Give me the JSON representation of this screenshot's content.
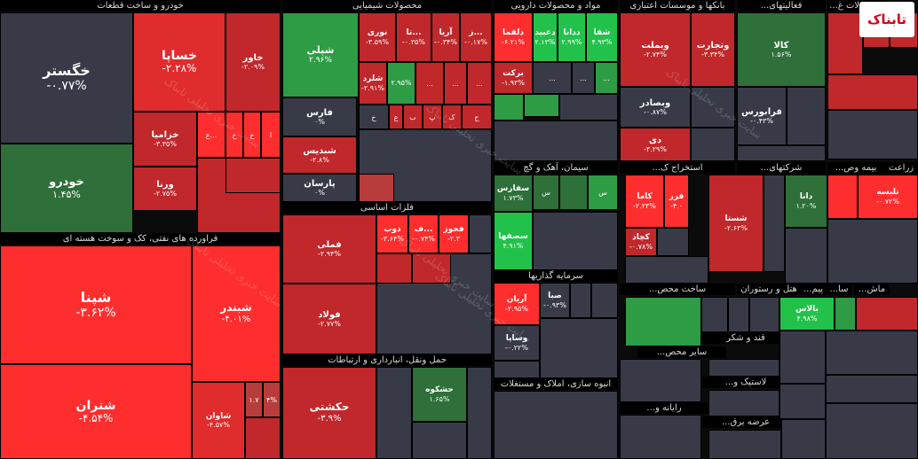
{
  "colors": {
    "dr": "#c0282b",
    "r": "#e02c2c",
    "br": "#ff2e2e",
    "sr": "#b93c3c",
    "n": "#383b47",
    "sg": "#2f6f3a",
    "g": "#2e9c45",
    "bg": "#22c24a",
    "gr": "#3c7c3c"
  },
  "watermark": "سایت خبری تحلیلی تابناک",
  "logo": "تابناک",
  "sectors": [
    "خودرو و ساخت قطعات",
    "محصولات شیمیایی",
    "مواد و محصولات دارویی",
    "بانکها و موسسات اعتباری",
    "فعالیتهای...",
    "محصولات غ...",
    "فراورده های نفتی، کک و سوخت هسته ای",
    "فلزات اساسی",
    "سیمان، آهک و گچ",
    "استخراج ک...",
    "شرکتهای...",
    "بیمه وص...",
    "زراعت",
    "سرمایه گذاریها",
    "ساخت محص...",
    "هتل و رستوران",
    "پیم...",
    "سا...",
    "ماش...",
    "حمل ونقل، انبارداری و ارتباطات",
    "انبوه سازی، املاک و مستغلات",
    "قند و شکر",
    "سایر محص...",
    "لاستیک و...",
    "رایانه و...",
    "عرضه برق..."
  ],
  "tiles": [
    {
      "n": "خگستر",
      "p": "-۰.۷۷%"
    },
    {
      "n": "خساپا",
      "p": "-۲.۲۸%"
    },
    {
      "n": "خاور",
      "p": "-۲.۰۹%"
    },
    {
      "n": "خزامیا",
      "p": "-۳.۳۵%"
    },
    {
      "n": "ورنا",
      "p": "-۲.۷۵%"
    },
    {
      "n": "خودرو",
      "p": "۱.۴۵%"
    },
    {
      "n": "شپلی",
      "p": "۲.۹۶%"
    },
    {
      "n": "نوری",
      "p": "-۳.۵۹%"
    },
    {
      "n": "تا...",
      "p": "-۰.۳۵%"
    },
    {
      "n": "آریا",
      "p": "-۰.۳۴%"
    },
    {
      "n": "ز...",
      "p": "-۰.۱۷%"
    },
    {
      "n": "شلرد",
      "p": "-۲.۹۱%"
    },
    {
      "n": "",
      "p": "۲.۹۵%"
    },
    {
      "n": "فارس",
      "p": "۰%"
    },
    {
      "n": "شبدیس",
      "p": "-۲.۸%"
    },
    {
      "n": "پارسان",
      "p": "۰%"
    },
    {
      "n": "دلقما",
      "p": "-۶.۲۱%"
    },
    {
      "n": "دعبید",
      "p": "۲.۱۳%"
    },
    {
      "n": "ددانا",
      "p": "۲.۹۹%"
    },
    {
      "n": "شفا",
      "p": "۴.۹۳%"
    },
    {
      "n": "برکت",
      "p": "-۱.۹۳%"
    },
    {
      "n": "وبملت",
      "p": "-۲.۷۴%"
    },
    {
      "n": "وتجارت",
      "p": "-۳.۳۴%"
    },
    {
      "n": "وبصادر",
      "p": "-۰.۸۷%"
    },
    {
      "n": "دی",
      "p": "-۳.۲۹%"
    },
    {
      "n": "کالا",
      "p": "۱.۵۶%"
    },
    {
      "n": "فرابورس",
      "p": "-۰.۴۳%"
    },
    {
      "n": "شپنا",
      "p": "-۳.۶۲%"
    },
    {
      "n": "شبندر",
      "p": "-۴.۰۱%"
    },
    {
      "n": "شتران",
      "p": "-۴.۵۴%"
    },
    {
      "n": "شاوان",
      "p": "-۴.۵۷%"
    },
    {
      "n": "فملی",
      "p": "-۲.۹۴%"
    },
    {
      "n": "ذوب",
      "p": "-۳.۶۴%"
    },
    {
      "n": "ف...",
      "p": "-۰.۷۴%"
    },
    {
      "n": "فخوز",
      "p": "-۲.۳"
    },
    {
      "n": "فولاد",
      "p": "-۲.۷۷%"
    },
    {
      "n": "سفارس",
      "p": "۱.۷۳%"
    },
    {
      "n": "سصفها",
      "p": "۴.۹۱%"
    },
    {
      "n": "کاما",
      "p": "-۲.۲۳%"
    },
    {
      "n": "فزر",
      "p": "-۴.۰"
    },
    {
      "n": "کچاد",
      "p": "-۰.۷۸%"
    },
    {
      "n": "شستا",
      "p": "-۲.۶۳%"
    },
    {
      "n": "دانا",
      "p": "۱.۲۰%"
    },
    {
      "n": "تلیسه",
      "p": "-۰.۷۲%"
    },
    {
      "n": "آریان",
      "p": "-۲.۹۵%"
    },
    {
      "n": "صبا",
      "p": "-۰.۹۳%"
    },
    {
      "n": "وساپا",
      "p": "-۰.۲۲%"
    },
    {
      "n": "بالاس",
      "p": "۴.۹۸%"
    },
    {
      "n": "حکشتی",
      "p": "-۳.۹%"
    },
    {
      "n": "حشکوه",
      "p": "۱.۶۵%"
    }
  ]
}
